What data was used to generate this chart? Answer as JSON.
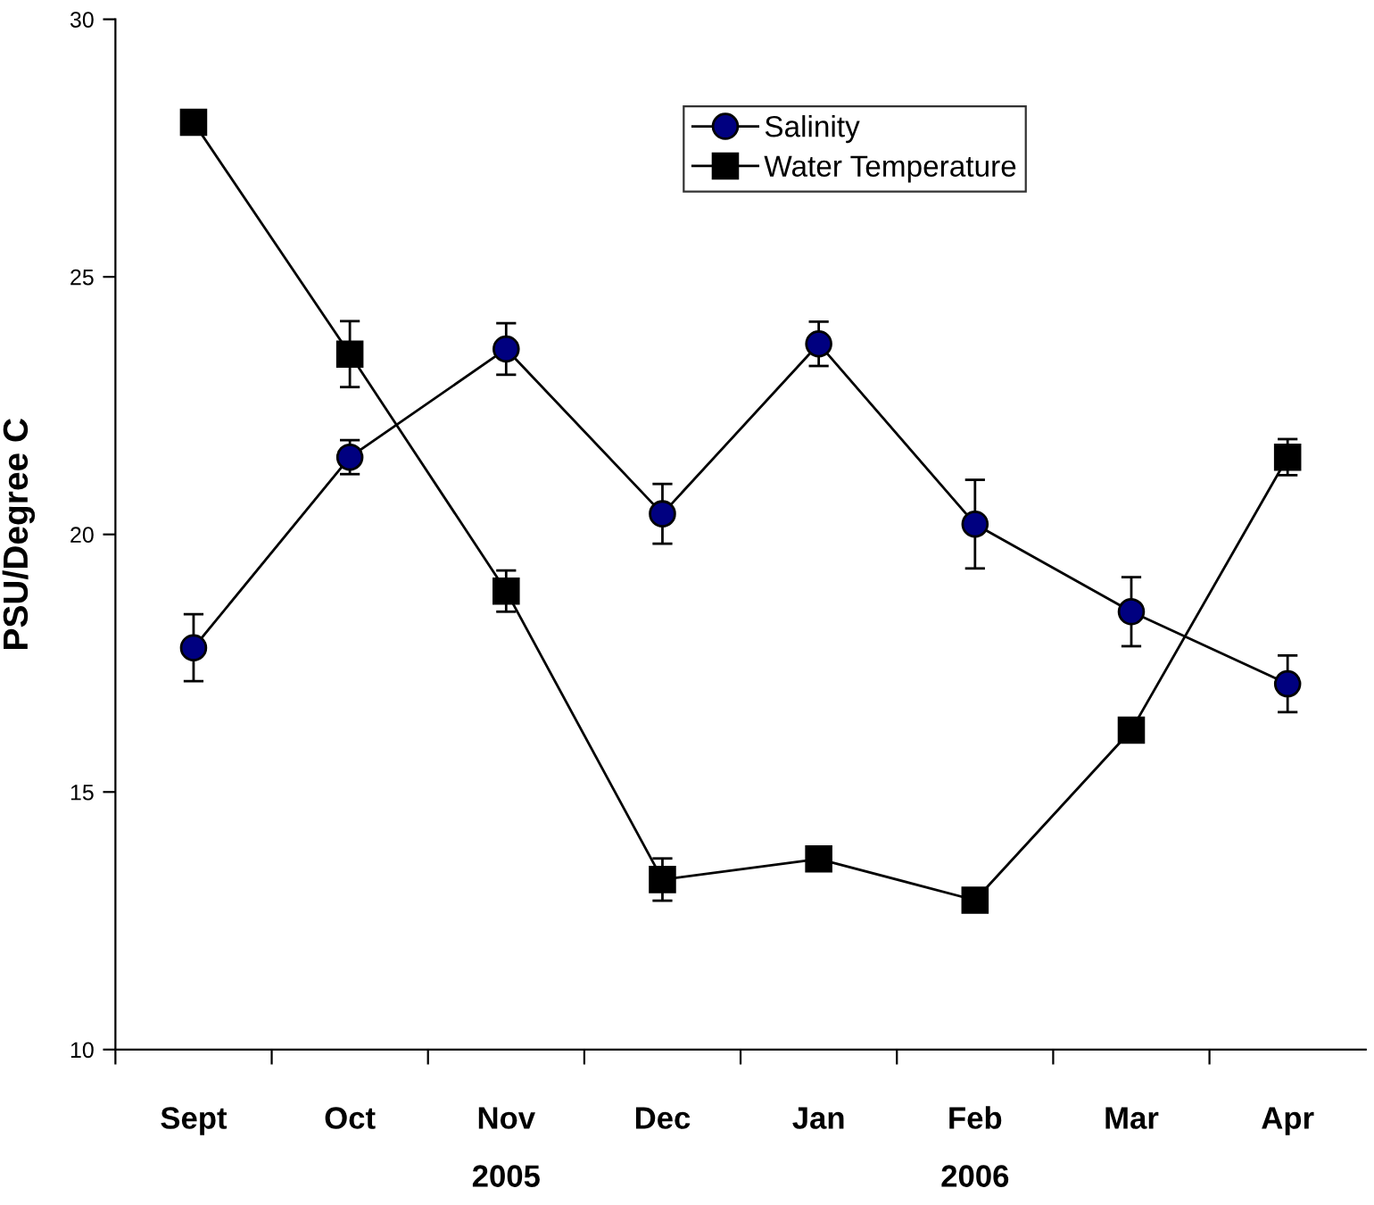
{
  "chart_data": {
    "type": "line",
    "ylabel": "PSU/Degree C",
    "categories": [
      "Sept",
      "Oct",
      "Nov\n2005",
      "Dec",
      "Jan",
      "Feb\n2006",
      "Mar",
      "Apr"
    ],
    "series": [
      {
        "name": "Salinity",
        "color": "#000080",
        "marker": "circle",
        "values": [
          17.8,
          21.5,
          23.6,
          20.4,
          23.7,
          20.2,
          18.5,
          17.1
        ],
        "errors": [
          0.65,
          0.33,
          0.5,
          0.58,
          0.43,
          0.86,
          0.67,
          0.55
        ]
      },
      {
        "name": "Water Temperature",
        "color": "#000000",
        "marker": "square",
        "values": [
          28.0,
          23.5,
          18.9,
          13.3,
          13.7,
          12.9,
          16.2,
          21.5
        ],
        "errors": [
          0.15,
          0.64,
          0.4,
          0.41,
          null,
          0.2,
          0.15,
          0.35
        ]
      }
    ],
    "ylim": [
      10,
      30
    ],
    "yticks": [
      10,
      15,
      20,
      25,
      30
    ],
    "grid": false,
    "legend": "top right",
    "line_style": "solid"
  }
}
